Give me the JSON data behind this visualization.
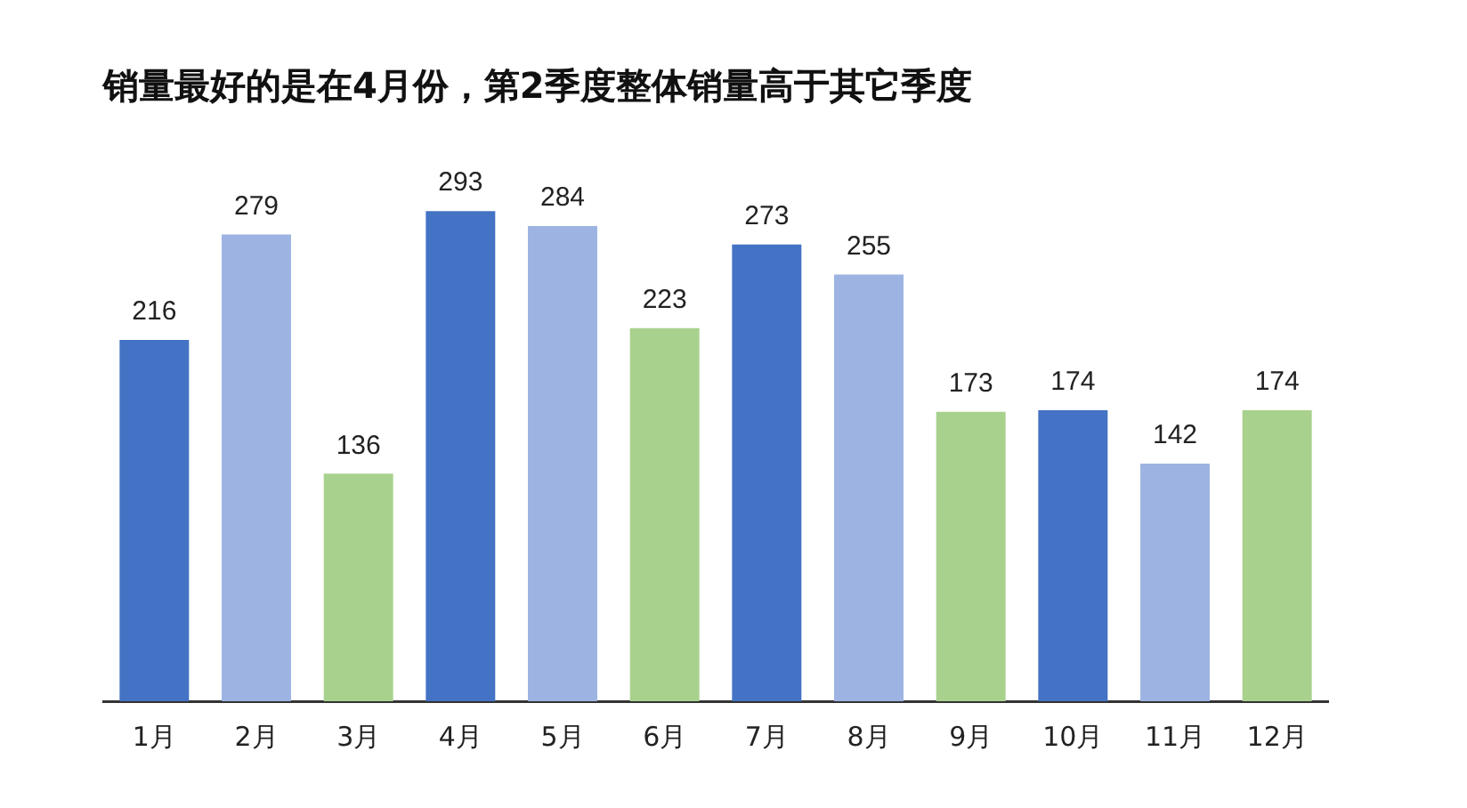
{
  "chart_data": {
    "type": "bar",
    "title": "销量最好的是在4月份，第2季度整体销量高于其它季度",
    "categories": [
      "1月",
      "2月",
      "3月",
      "4月",
      "5月",
      "6月",
      "7月",
      "8月",
      "9月",
      "10月",
      "11月",
      "12月"
    ],
    "values": [
      216,
      279,
      136,
      293,
      284,
      223,
      273,
      255,
      173,
      174,
      142,
      174
    ],
    "colors": [
      "#4472c4",
      "#9db4e2",
      "#a9d18e",
      "#4472c4",
      "#9db4e2",
      "#a9d18e",
      "#4472c4",
      "#9db4e2",
      "#a9d18e",
      "#4472c4",
      "#9db4e2",
      "#a9d18e"
    ],
    "data_labels": true,
    "grid": false,
    "legend": false
  }
}
